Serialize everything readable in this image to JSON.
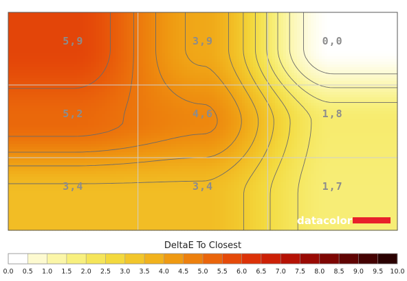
{
  "chart_data": {
    "type": "heatmap",
    "title": "DeltaE To Closest",
    "rows": 3,
    "cols": 3,
    "cells": [
      {
        "row": 0,
        "col": 0,
        "label": "5,9",
        "value": 5.9
      },
      {
        "row": 0,
        "col": 1,
        "label": "3,9",
        "value": 3.9
      },
      {
        "row": 0,
        "col": 2,
        "label": "0,0",
        "value": 0.0
      },
      {
        "row": 1,
        "col": 0,
        "label": "5,2",
        "value": 5.2
      },
      {
        "row": 1,
        "col": 1,
        "label": "4,6",
        "value": 4.6
      },
      {
        "row": 1,
        "col": 2,
        "label": "1,8",
        "value": 1.8
      },
      {
        "row": 2,
        "col": 0,
        "label": "3,4",
        "value": 3.4
      },
      {
        "row": 2,
        "col": 1,
        "label": "3,4",
        "value": 3.4
      },
      {
        "row": 2,
        "col": 2,
        "label": "1,7",
        "value": 1.7
      }
    ],
    "colorbar": {
      "ticks": [
        "0.0",
        "0.5",
        "1.0",
        "1.5",
        "2.0",
        "2.5",
        "3.0",
        "3.5",
        "4.0",
        "4.5",
        "5.0",
        "5.5",
        "6.0",
        "6.5",
        "7.0",
        "7.5",
        "8.0",
        "8.5",
        "9.0",
        "9.5",
        "10.0"
      ],
      "colors": [
        "#ffffff",
        "#fdfad0",
        "#fbf6a8",
        "#f8f07e",
        "#f5e55a",
        "#f3d93e",
        "#f2c62b",
        "#f1b21d",
        "#ef9a12",
        "#ed800d",
        "#ea650b",
        "#e54a09",
        "#dc3208",
        "#cc2006",
        "#b51205",
        "#990a04",
        "#7d0603",
        "#600403",
        "#440202",
        "#2a0101"
      ],
      "range": [
        0,
        10
      ]
    },
    "grid": true,
    "watermark": "datacolor",
    "watermark_color": "#e8202a",
    "grid_color": "#cfcfcf",
    "contour_color": "#6a6a6a"
  }
}
